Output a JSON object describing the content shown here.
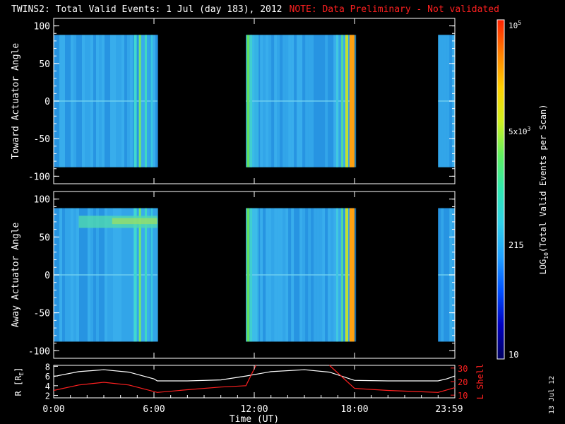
{
  "title": "TWINS2: Total Valid Events:  1 Jul (day 183), 2012",
  "note": "NOTE: Data Preliminary - Not validated",
  "stamp": "13 Jul 12",
  "chart_data": [
    {
      "type": "heatmap",
      "ylabel": "Toward Actuator Angle",
      "ylim": [
        -110,
        110
      ],
      "y_ticks": [
        "100",
        "50",
        "0",
        "-50",
        "-100"
      ],
      "x_range_hours": [
        0,
        24
      ],
      "data_blocks_hours": [
        [
          0,
          6.2
        ],
        [
          11.5,
          18.0
        ],
        [
          23.0,
          24
        ]
      ],
      "angle_range": [
        -88,
        88
      ],
      "background_level": "cyan-blue (~300 events/scan)",
      "bright_columns_hours": [
        5.1,
        5.4,
        11.6,
        17.8
      ],
      "grid": false
    },
    {
      "type": "heatmap",
      "ylabel": "Away Actuator Angle",
      "ylim": [
        -110,
        110
      ],
      "y_ticks": [
        "100",
        "50",
        "0",
        "-50",
        "-100"
      ],
      "x_range_hours": [
        0,
        24
      ],
      "data_blocks_hours": [
        [
          0,
          6.2
        ],
        [
          11.5,
          18.0
        ],
        [
          23.0,
          24
        ]
      ],
      "angle_range": [
        -88,
        88
      ],
      "feature": "enhanced band near +70 deg from 1:30 to 6:00 UT",
      "grid": false
    },
    {
      "type": "line",
      "xlabel": "Time (UT)",
      "x_tick_labels": [
        "0:00",
        "6:00",
        "12:00",
        "18:00",
        "23:59"
      ],
      "left_axis": {
        "label": "R [R",
        "label_sub": "E",
        "label_end": "]",
        "ticks": [
          "8",
          "6",
          "4",
          "2"
        ],
        "ylim": [
          1.5,
          8.2
        ]
      },
      "right_axis": {
        "label": "L Shell",
        "ticks": [
          "30",
          "20",
          "10"
        ],
        "ylim": [
          8,
          32
        ]
      },
      "series": [
        {
          "axis": "left",
          "color": "#ffffff",
          "x": [
            0,
            1.5,
            3,
            4.5,
            6,
            6.2,
            8,
            10,
            11.5,
            13,
            15,
            16.5,
            18,
            20,
            22,
            23,
            23.5,
            24
          ],
          "y": [
            5.9,
            6.9,
            7.3,
            6.8,
            5.4,
            5.0,
            5.0,
            5.2,
            6.0,
            6.9,
            7.3,
            6.8,
            5.1,
            5.0,
            5.0,
            5.0,
            5.4,
            6.0
          ]
        },
        {
          "axis": "right",
          "color": "#ff2020",
          "segments": [
            {
              "x": [
                0,
                1.5,
                3,
                4.5,
                6.2,
                8,
                10,
                11.5,
                12.1
              ],
              "y": [
                13.5,
                17.5,
                19.5,
                17.5,
                12.0,
                14.0,
                16.0,
                17.0,
                32
              ]
            },
            {
              "x": [
                16.5,
                18,
                20,
                22,
                23,
                24
              ],
              "y": [
                32,
                15.0,
                13.5,
                12.5,
                12.0,
                15.5
              ]
            }
          ]
        }
      ]
    }
  ],
  "colorbar": {
    "label_prefix": "LOG",
    "label_sub": "10",
    "label_suffix": "(Total Valid Events per Scan)",
    "tick_labels": {
      "top": "10",
      "top_sup": "5",
      "mid": "5x10",
      "mid_sup": "3",
      "low": "215",
      "bottom": "10"
    },
    "colors": [
      "#000060",
      "#0000c0",
      "#0050ff",
      "#20a0ff",
      "#30d0e8",
      "#30e8b0",
      "#60f060",
      "#d0f020",
      "#ffd000",
      "#ff8000",
      "#ff2000"
    ]
  }
}
